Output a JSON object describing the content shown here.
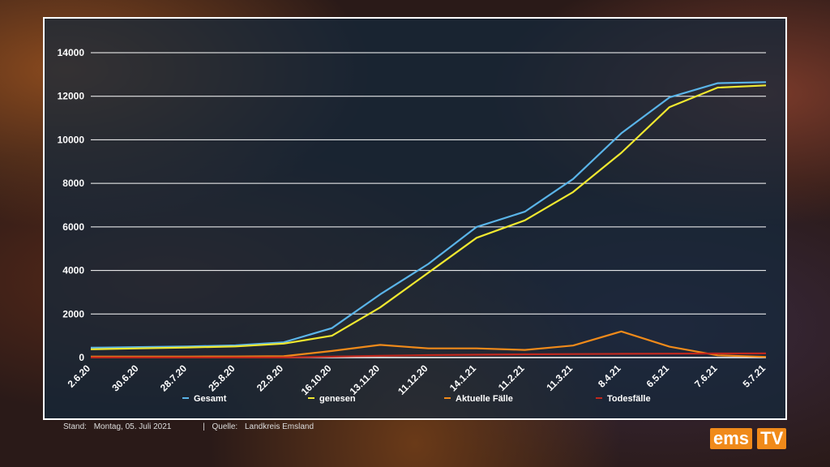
{
  "chart_data": {
    "type": "line",
    "ylim": [
      0,
      14000
    ],
    "yticks": [
      0,
      2000,
      4000,
      6000,
      8000,
      10000,
      12000,
      14000
    ],
    "xticks": [
      "2.6.20",
      "30.6.20",
      "28.7.20",
      "25.8.20",
      "22.9.20",
      "16.10.20",
      "13.11.20",
      "11.12.20",
      "14.1.21",
      "11.2.21",
      "11.3.21",
      "8.4.21",
      "6.5.21",
      "7.6.21",
      "5.7.21"
    ],
    "grid": true,
    "legend_position": "bottom",
    "series": [
      {
        "name": "Gesamt",
        "color": "#5ab4e8",
        "values": [
          450,
          480,
          510,
          560,
          700,
          1350,
          2900,
          4300,
          6000,
          6700,
          8200,
          10300,
          11950,
          12600,
          12650
        ]
      },
      {
        "name": "genesen",
        "color": "#f0e830",
        "values": [
          380,
          420,
          460,
          510,
          640,
          1000,
          2300,
          3900,
          5500,
          6300,
          7600,
          9400,
          11500,
          12400,
          12500
        ]
      },
      {
        "name": "Aktuelle Fälle",
        "color": "#f08a1a",
        "values": [
          40,
          40,
          45,
          50,
          60,
          300,
          580,
          420,
          420,
          350,
          550,
          1200,
          500,
          100,
          30
        ]
      },
      {
        "name": "Todesfälle",
        "color": "#c0281e",
        "values": [
          5,
          5,
          5,
          5,
          5,
          40,
          80,
          110,
          130,
          150,
          160,
          170,
          180,
          185,
          190
        ]
      }
    ]
  },
  "footer": {
    "stand_label": "Stand:",
    "stand_value": "Montag, 05. Juli 2021",
    "separator": "|",
    "source_label": "Quelle:",
    "source_value": "Landkreis Emsland"
  },
  "logo": {
    "text_a": "ems",
    "text_b": "TV"
  }
}
